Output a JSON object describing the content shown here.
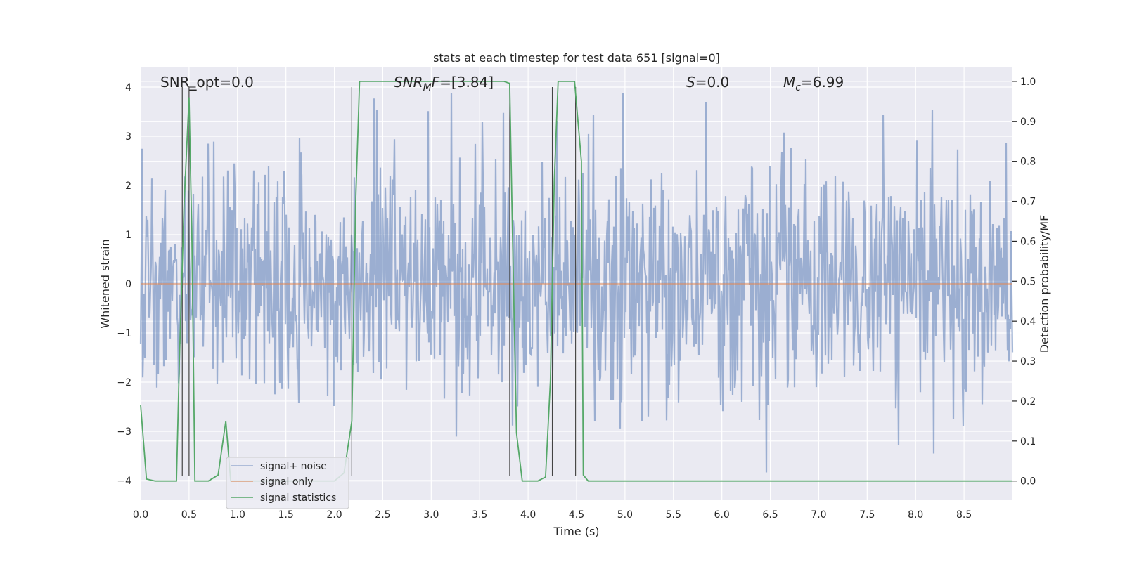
{
  "chart_data": {
    "type": "line",
    "title": "stats at each timestep for test data 651 [signal=0]",
    "xlabel": "Time (s)",
    "ylabel": "Whitened strain",
    "y2label": "Detection probability/MF",
    "xlim": [
      0.0,
      9.0
    ],
    "ylim": [
      -4.4,
      4.4
    ],
    "y2lim": [
      -0.048,
      1.035
    ],
    "xticks": [
      "0.0",
      "0.5",
      "1.0",
      "1.5",
      "2.0",
      "2.5",
      "3.0",
      "3.5",
      "4.0",
      "4.5",
      "5.0",
      "5.5",
      "6.0",
      "6.5",
      "7.0",
      "7.5",
      "8.0",
      "8.5"
    ],
    "yticks": [
      "4",
      "3",
      "2",
      "1",
      "0",
      "−1",
      "−2",
      "−3",
      "−4"
    ],
    "y2ticks": [
      "1.0",
      "0.9",
      "0.8",
      "0.7",
      "0.6",
      "0.5",
      "0.4",
      "0.3",
      "0.2",
      "0.1",
      "0.0"
    ],
    "grid": true,
    "annotations": {
      "snr_opt": "SNR_opt=0.0",
      "snr_mf_italic": "SNR",
      "snr_mf_sub": "M",
      "snr_mf_italic2": "F",
      "snr_mf_value": "=[3.84]",
      "s_italic": "S",
      "s_value": "=0.0",
      "mc_italic": "M",
      "mc_sub": "c",
      "mc_value": "=6.99"
    },
    "legend": {
      "placement": "lower-left",
      "entries": [
        {
          "label": "signal+ noise",
          "color": "#4c72b0"
        },
        {
          "label": "signal only",
          "color": "#dd8452"
        },
        {
          "label": "signal statistics",
          "color": "#55a868"
        }
      ]
    },
    "series": [
      {
        "name": "signal+ noise",
        "color": "#4c72b0",
        "kind": "noise-band",
        "duration": 9.0,
        "std": 1.15,
        "peak": 4.0
      },
      {
        "name": "signal only",
        "color": "#dd8452",
        "x": [
          0.0,
          9.0
        ],
        "y": [
          0.0,
          0.0
        ]
      },
      {
        "name": "signal statistics",
        "color": "#55a868",
        "axis": "right",
        "x": [
          0.0,
          0.06,
          0.15,
          0.3,
          0.37,
          0.4,
          0.45,
          0.5,
          0.53,
          0.56,
          0.6,
          0.7,
          0.8,
          0.88,
          0.93,
          1.0,
          1.1,
          2.0,
          2.1,
          2.18,
          2.22,
          2.26,
          2.3,
          3.5,
          3.75,
          3.81,
          3.84,
          3.88,
          3.94,
          4.0,
          4.1,
          4.18,
          4.23,
          4.27,
          4.31,
          4.36,
          4.48,
          4.55,
          4.57,
          4.62,
          5.0,
          9.0
        ],
        "y": [
          0.19,
          0.005,
          0.0,
          0.0,
          0.0,
          0.3,
          0.7,
          0.96,
          0.6,
          0.0,
          0.0,
          0.0,
          0.015,
          0.15,
          0.0,
          0.0,
          0.0,
          0.0,
          0.02,
          0.15,
          0.7,
          1.0,
          1.0,
          1.0,
          1.0,
          0.995,
          0.6,
          0.12,
          0.0,
          0.0,
          0.0,
          0.01,
          0.25,
          0.75,
          1.0,
          1.0,
          1.0,
          0.8,
          0.015,
          0.0,
          0.0,
          0.0
        ]
      }
    ],
    "vlines": [
      0.43,
      0.5,
      2.18,
      3.81,
      4.25,
      4.49
    ],
    "vline_range": [
      -3.9,
      4.0
    ],
    "dashes": [
      0.5,
      0.57
    ]
  }
}
